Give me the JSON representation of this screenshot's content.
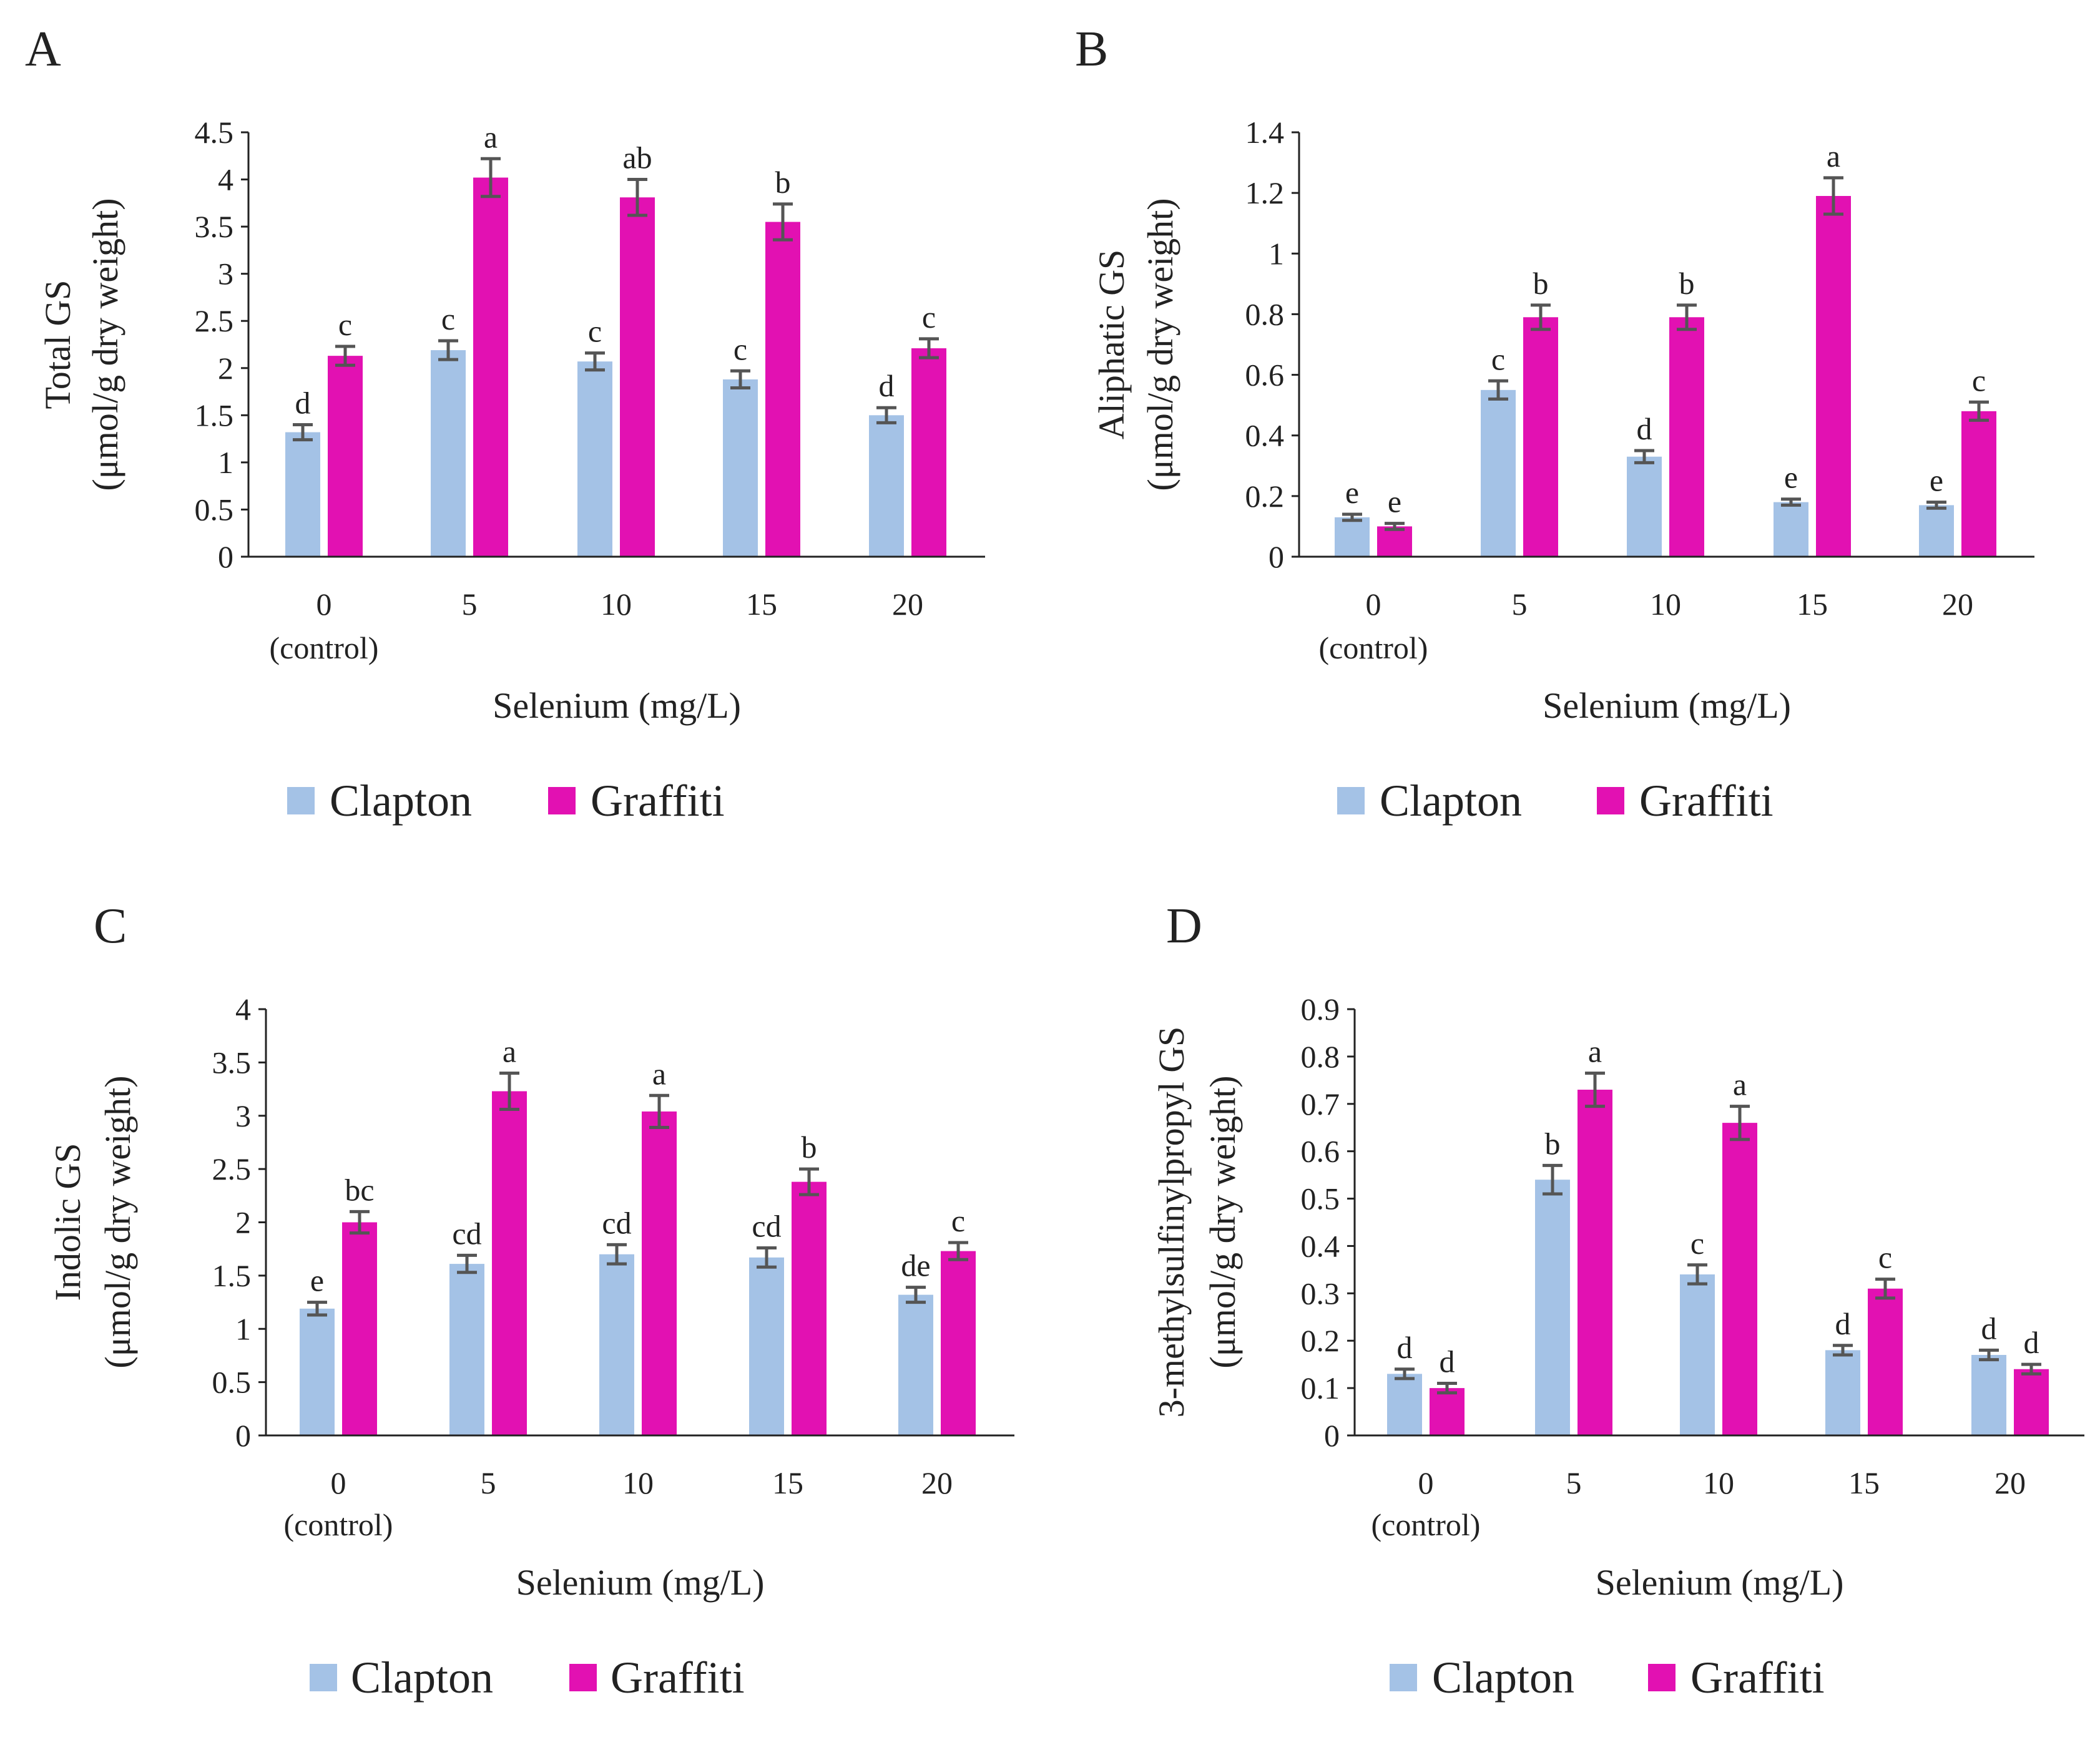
{
  "chart_data": [
    {
      "type": "bar",
      "panel": "A",
      "categories": [
        [
          "0",
          "(control)"
        ],
        [
          "5"
        ],
        [
          "10"
        ],
        [
          "15"
        ],
        [
          "20"
        ]
      ],
      "xlabel": "Selenium (mg/L)",
      "ylabel": [
        "Total GS",
        "(μmol/g dry weight)"
      ],
      "ylim": [
        0,
        4.5
      ],
      "yticks": [
        "0",
        "0.5",
        "1",
        "1.5",
        "2",
        "2.5",
        "3",
        "3.5",
        "4",
        "4.5"
      ],
      "series": [
        {
          "name": "Clapton",
          "values": [
            1.32,
            2.19,
            2.07,
            1.88,
            1.5
          ],
          "errors": [
            0.08,
            0.1,
            0.09,
            0.09,
            0.08
          ],
          "labels": [
            "d",
            "c",
            "c",
            "c",
            "d"
          ]
        },
        {
          "name": "Graffiti",
          "values": [
            2.13,
            4.02,
            3.81,
            3.55,
            2.21
          ],
          "errors": [
            0.1,
            0.2,
            0.19,
            0.19,
            0.1
          ],
          "labels": [
            "c",
            "a",
            "ab",
            "b",
            "c"
          ]
        }
      ]
    },
    {
      "type": "bar",
      "panel": "B",
      "categories": [
        [
          "0",
          "(control)"
        ],
        [
          "5"
        ],
        [
          "10"
        ],
        [
          "15"
        ],
        [
          "20"
        ]
      ],
      "xlabel": "Selenium (mg/L)",
      "ylabel": [
        "Aliphatic GS",
        "(μmol/g dry weight)"
      ],
      "ylim": [
        0,
        1.4
      ],
      "yticks": [
        "0",
        "0.2",
        "0.4",
        "0.6",
        "0.8",
        "1",
        "1.2",
        "1.4"
      ],
      "series": [
        {
          "name": "Clapton",
          "values": [
            0.13,
            0.55,
            0.33,
            0.18,
            0.17
          ],
          "errors": [
            0.01,
            0.03,
            0.02,
            0.01,
            0.01
          ],
          "labels": [
            "e",
            "c",
            "d",
            "e",
            "e"
          ]
        },
        {
          "name": "Graffiti",
          "values": [
            0.1,
            0.79,
            0.79,
            1.19,
            0.48
          ],
          "errors": [
            0.01,
            0.04,
            0.04,
            0.06,
            0.03
          ],
          "labels": [
            "e",
            "b",
            "b",
            "a",
            "c"
          ]
        }
      ]
    },
    {
      "type": "bar",
      "panel": "C",
      "categories": [
        [
          "0",
          "(control)"
        ],
        [
          "5"
        ],
        [
          "10"
        ],
        [
          "15"
        ],
        [
          "20"
        ]
      ],
      "xlabel": "Selenium (mg/L)",
      "ylabel": [
        "Indolic GS",
        "(μmol/g dry weight)"
      ],
      "ylim": [
        0,
        4
      ],
      "yticks": [
        "0",
        "0.5",
        "1",
        "1.5",
        "2",
        "2.5",
        "3",
        "3.5",
        "4"
      ],
      "series": [
        {
          "name": "Clapton",
          "values": [
            1.19,
            1.61,
            1.7,
            1.67,
            1.32
          ],
          "errors": [
            0.06,
            0.08,
            0.09,
            0.09,
            0.07
          ],
          "labels": [
            "e",
            "cd",
            "cd",
            "cd",
            "de"
          ]
        },
        {
          "name": "Graffiti",
          "values": [
            2.0,
            3.23,
            3.04,
            2.38,
            1.73
          ],
          "errors": [
            0.1,
            0.17,
            0.15,
            0.12,
            0.08
          ],
          "labels": [
            "bc",
            "a",
            "a",
            "b",
            "c"
          ]
        }
      ]
    },
    {
      "type": "bar",
      "panel": "D",
      "categories": [
        [
          "0",
          "(control)"
        ],
        [
          "5"
        ],
        [
          "10"
        ],
        [
          "15"
        ],
        [
          "20"
        ]
      ],
      "xlabel": "Selenium (mg/L)",
      "ylabel": [
        "3-methylsulfinylpropyl GS",
        "(μmol/g dry weight)"
      ],
      "ylim": [
        0,
        0.9
      ],
      "yticks": [
        "0",
        "0.1",
        "0.2",
        "0.3",
        "0.4",
        "0.5",
        "0.6",
        "0.7",
        "0.8",
        "0.9"
      ],
      "series": [
        {
          "name": "Clapton",
          "values": [
            0.13,
            0.54,
            0.34,
            0.18,
            0.17
          ],
          "errors": [
            0.01,
            0.03,
            0.02,
            0.01,
            0.01
          ],
          "labels": [
            "d",
            "b",
            "c",
            "d",
            "d"
          ]
        },
        {
          "name": "Graffiti",
          "values": [
            0.1,
            0.73,
            0.66,
            0.31,
            0.14
          ],
          "errors": [
            0.01,
            0.035,
            0.035,
            0.02,
            0.01
          ],
          "labels": [
            "d",
            "a",
            "a",
            "c",
            "d"
          ]
        }
      ]
    }
  ],
  "colors": {
    "Clapton": "#a4c2e6",
    "Graffiti": "#e211b2",
    "axis": "#222222",
    "error_bar": "#555555",
    "text": "#222222"
  }
}
